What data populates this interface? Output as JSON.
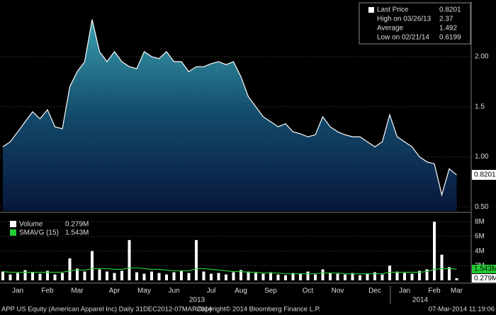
{
  "chart_data": [
    {
      "type": "area",
      "color": "#ffffff",
      "values": [
        1.1,
        1.15,
        1.25,
        1.35,
        1.45,
        1.38,
        1.47,
        1.3,
        1.28,
        1.7,
        1.85,
        1.95,
        2.37,
        2.05,
        1.95,
        2.05,
        1.95,
        1.9,
        1.88,
        2.05,
        2.0,
        1.98,
        2.05,
        1.95,
        1.95,
        1.85,
        1.9,
        1.9,
        1.93,
        1.95,
        1.92,
        1.95,
        1.8,
        1.6,
        1.5,
        1.4,
        1.35,
        1.3,
        1.33,
        1.25,
        1.23,
        1.2,
        1.22,
        1.4,
        1.3,
        1.25,
        1.22,
        1.2,
        1.2,
        1.15,
        1.1,
        1.15,
        1.42,
        1.2,
        1.15,
        1.1,
        1.0,
        0.95,
        0.93,
        0.6199,
        0.88,
        0.8201
      ],
      "ylim": [
        0.46,
        2.53
      ],
      "yticks": [
        {
          "value": 0.5,
          "label": "0.50"
        },
        {
          "value": 1,
          "label": "1.00"
        },
        1.5,
        {
          "value": 2,
          "label": "2.00"
        }
      ],
      "legend": [
        {
          "label": "Last Price",
          "value": 0.8201
        },
        {
          "label": "High on 03/26/13",
          "value": 2.37
        },
        {
          "label": "Average",
          "value": 1.492
        },
        {
          "label": "Low on 02/21/14",
          "value": 0.6199
        }
      ]
    },
    {
      "type": "bar",
      "categories": [
        null,
        null,
        "Jan",
        null,
        null,
        null,
        "Feb",
        null,
        null,
        null,
        "Mar",
        null,
        null,
        null,
        null,
        "Apr",
        null,
        null,
        null,
        "May",
        null,
        null,
        null,
        "Jun",
        null,
        null,
        null,
        null,
        "Jul",
        null,
        null,
        null,
        "Aug",
        null,
        null,
        null,
        "Sep",
        null,
        null,
        null,
        null,
        "Oct",
        null,
        null,
        null,
        "Nov",
        null,
        null,
        null,
        null,
        "Dec",
        null,
        null,
        null,
        "Jan",
        null,
        null,
        null,
        "Feb",
        null,
        null,
        "Mar"
      ],
      "years": [
        "2013",
        "2014"
      ],
      "series": [
        {
          "name": "Volume",
          "value_label": "0.279M",
          "color": "#ffffff",
          "values": [
            1.2,
            0.8,
            1.0,
            1.4,
            1.1,
            0.9,
            1.3,
            0.8,
            1.0,
            3.0,
            1.6,
            1.2,
            4.0,
            1.5,
            1.2,
            1.0,
            1.3,
            5.5,
            1.1,
            0.9,
            1.2,
            1.0,
            0.8,
            1.1,
            1.3,
            1.0,
            5.5,
            1.2,
            0.9,
            1.0,
            0.8,
            1.1,
            1.4,
            1.2,
            1.0,
            0.9,
            1.1,
            0.8,
            0.7,
            1.0,
            0.9,
            1.2,
            0.8,
            1.5,
            1.0,
            0.9,
            0.8,
            1.0,
            0.7,
            0.9,
            1.1,
            0.8,
            2.0,
            1.2,
            1.0,
            0.9,
            1.3,
            1.5,
            8.0,
            3.5,
            1.8,
            0.279
          ]
        },
        {
          "name": "SMAVG (15)",
          "value_label": "1.543M",
          "color": "#22cc33",
          "values": [
            1.2,
            1.1,
            1.1,
            1.1,
            1.1,
            1.1,
            1.1,
            1.1,
            1.1,
            1.3,
            1.4,
            1.4,
            1.6,
            1.6,
            1.6,
            1.5,
            1.5,
            1.7,
            1.7,
            1.6,
            1.5,
            1.5,
            1.4,
            1.3,
            1.3,
            1.3,
            1.6,
            1.6,
            1.5,
            1.4,
            1.3,
            1.2,
            1.2,
            1.1,
            1.1,
            1.0,
            1.0,
            1.0,
            0.9,
            0.9,
            0.9,
            0.9,
            0.9,
            1.0,
            1.0,
            1.0,
            0.9,
            0.9,
            0.9,
            0.9,
            0.9,
            0.9,
            1.1,
            1.1,
            1.1,
            1.1,
            1.1,
            1.2,
            1.5,
            1.6,
            1.6,
            1.543
          ]
        }
      ],
      "ylim": [
        0,
        8.9
      ],
      "yticks": [
        {
          "value": 2,
          "label": "2M"
        },
        {
          "value": 4,
          "label": "4M"
        },
        {
          "value": 6,
          "label": "6M"
        },
        {
          "value": 8,
          "label": "8M"
        }
      ]
    }
  ],
  "footer": {
    "left": "APP US Equity (American Apparel Inc)  Daily 31DEC2012-07MAR2014",
    "center": "Copyright© 2014 Bloomberg Finance L.P.",
    "right": "07-Mar-2014 11:19:06"
  }
}
